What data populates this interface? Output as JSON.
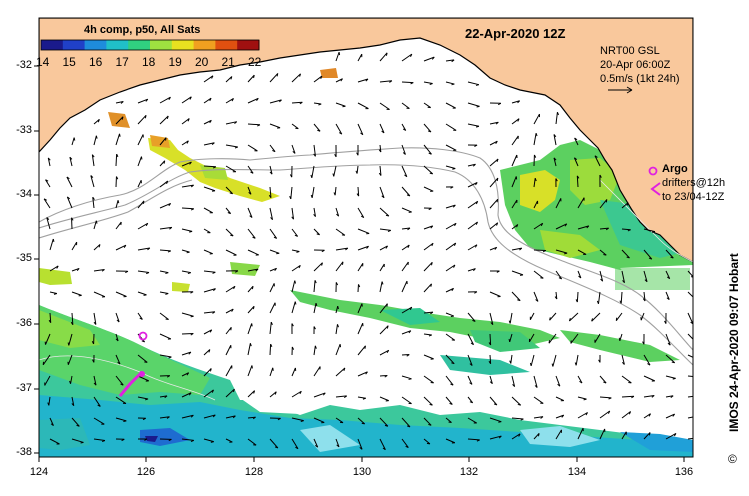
{
  "title": {
    "date": "22-Apr-2020 12Z",
    "colorbar_title": "4h comp, p50, All Sats"
  },
  "colorbar": {
    "ticks": [
      "14",
      "15",
      "16",
      "17",
      "18",
      "19",
      "20",
      "21",
      "22"
    ],
    "colors": [
      "#1a1a8c",
      "#2040c8",
      "#1e8cdc",
      "#20c0c8",
      "#30d080",
      "#9ee040",
      "#e8e020",
      "#f0a020",
      "#e05010",
      "#a01010"
    ]
  },
  "info": {
    "model": "NRT00 GSL",
    "time": "20-Apr 06:00Z",
    "scale": "0.5m/s (1kt 24h)"
  },
  "legend": {
    "argo_label": "Argo",
    "drifters_line1": "drifters@12h",
    "drifters_line2": "to 23/04-12Z",
    "argo_color": "#e020e0"
  },
  "axes": {
    "lon_ticks": [
      "124",
      "126",
      "128",
      "130",
      "132",
      "134",
      "136"
    ],
    "lat_ticks": [
      "-32",
      "-33",
      "-34",
      "-35",
      "-36",
      "-37",
      "-38"
    ]
  },
  "credit": "IMOS 24-Apr-2020 09:07 Hobart",
  "copyright_symbol": "©",
  "colors": {
    "land": "#f9c89c",
    "ocean": "#ffffff",
    "coast": "#000000",
    "contour": "#a0a0a0"
  }
}
